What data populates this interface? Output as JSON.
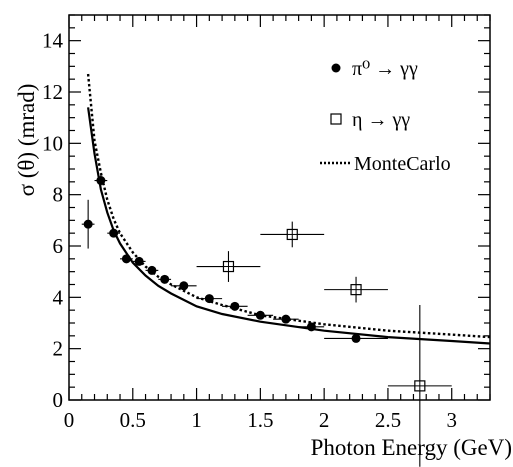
{
  "chart_data": {
    "type": "scatter",
    "title": "",
    "xlabel": "Photon Energy (GeV)",
    "ylabel": "σ (θ) (mrad)",
    "xlim": [
      0,
      3.3
    ],
    "ylim": [
      0,
      15
    ],
    "x_ticks": [
      {
        "value": 0,
        "label": "0"
      },
      {
        "value": 0.5,
        "label": "0.5"
      },
      {
        "value": 1,
        "label": "1"
      },
      {
        "value": 1.5,
        "label": "1.5"
      },
      {
        "value": 2,
        "label": "2"
      },
      {
        "value": 2.5,
        "label": "2.5"
      },
      {
        "value": 3,
        "label": "3"
      }
    ],
    "y_ticks": [
      {
        "value": 0,
        "label": "0"
      },
      {
        "value": 2,
        "label": "2"
      },
      {
        "value": 4,
        "label": "4"
      },
      {
        "value": 6,
        "label": "6"
      },
      {
        "value": 8,
        "label": "8"
      },
      {
        "value": 10,
        "label": "10"
      },
      {
        "value": 12,
        "label": "12"
      },
      {
        "value": 14,
        "label": "14"
      }
    ],
    "grid": false,
    "legend_position": "top-right",
    "series": [
      {
        "name": "π⁰ → γγ",
        "kind": "points",
        "marker": "filled-circle",
        "color": "#000000",
        "points": [
          {
            "x": 0.15,
            "y": 6.85,
            "xerr": 0.05,
            "yerr": 0.95
          },
          {
            "x": 0.25,
            "y": 8.55,
            "xerr": 0.05,
            "yerr": 0.2
          },
          {
            "x": 0.35,
            "y": 6.5,
            "xerr": 0.05,
            "yerr": 0.15
          },
          {
            "x": 0.45,
            "y": 5.5,
            "xerr": 0.05,
            "yerr": 0.12
          },
          {
            "x": 0.55,
            "y": 5.4,
            "xerr": 0.05,
            "yerr": 0.12
          },
          {
            "x": 0.65,
            "y": 5.05,
            "xerr": 0.05,
            "yerr": 0.12
          },
          {
            "x": 0.75,
            "y": 4.7,
            "xerr": 0.05,
            "yerr": 0.12
          },
          {
            "x": 0.9,
            "y": 4.45,
            "xerr": 0.1,
            "yerr": 0.12
          },
          {
            "x": 1.1,
            "y": 3.95,
            "xerr": 0.1,
            "yerr": 0.12
          },
          {
            "x": 1.3,
            "y": 3.65,
            "xerr": 0.1,
            "yerr": 0.12
          },
          {
            "x": 1.5,
            "y": 3.3,
            "xerr": 0.1,
            "yerr": 0.12
          },
          {
            "x": 1.7,
            "y": 3.15,
            "xerr": 0.1,
            "yerr": 0.12
          },
          {
            "x": 1.9,
            "y": 2.85,
            "xerr": 0.1,
            "yerr": 0.15
          },
          {
            "x": 2.25,
            "y": 2.4,
            "xerr": 0.25,
            "yerr": 0.15
          }
        ]
      },
      {
        "name": "η → γγ",
        "kind": "points",
        "marker": "open-square",
        "color": "#000000",
        "points": [
          {
            "x": 1.25,
            "y": 5.2,
            "xerr": 0.25,
            "yerr": 0.6
          },
          {
            "x": 1.75,
            "y": 6.45,
            "xerr": 0.25,
            "yerr": 0.5
          },
          {
            "x": 2.25,
            "y": 4.3,
            "xerr": 0.25,
            "yerr": 0.5
          },
          {
            "x": 2.75,
            "y": 0.55,
            "xerr": 0.25,
            "yerr": 3.15
          }
        ]
      },
      {
        "name": "MonteCarlo",
        "kind": "line",
        "style": "dotted",
        "color": "#000000",
        "x": [
          0.15,
          0.2,
          0.25,
          0.3,
          0.35,
          0.4,
          0.5,
          0.6,
          0.7,
          0.8,
          1.0,
          1.2,
          1.5,
          2.0,
          2.5,
          3.0,
          3.3
        ],
        "y": [
          12.7,
          10.1,
          8.85,
          7.8,
          7.05,
          6.5,
          5.75,
          5.2,
          4.8,
          4.5,
          4.0,
          3.7,
          3.3,
          2.95,
          2.7,
          2.55,
          2.45
        ]
      },
      {
        "name": "",
        "kind": "line",
        "style": "solid",
        "color": "#000000",
        "x": [
          0.15,
          0.2,
          0.25,
          0.3,
          0.35,
          0.4,
          0.5,
          0.6,
          0.7,
          0.8,
          1.0,
          1.2,
          1.5,
          2.0,
          2.5,
          3.0,
          3.3
        ],
        "y": [
          11.4,
          9.6,
          8.2,
          7.3,
          6.6,
          6.1,
          5.35,
          4.85,
          4.45,
          4.15,
          3.65,
          3.35,
          3.05,
          2.7,
          2.45,
          2.3,
          2.2
        ]
      }
    ]
  }
}
